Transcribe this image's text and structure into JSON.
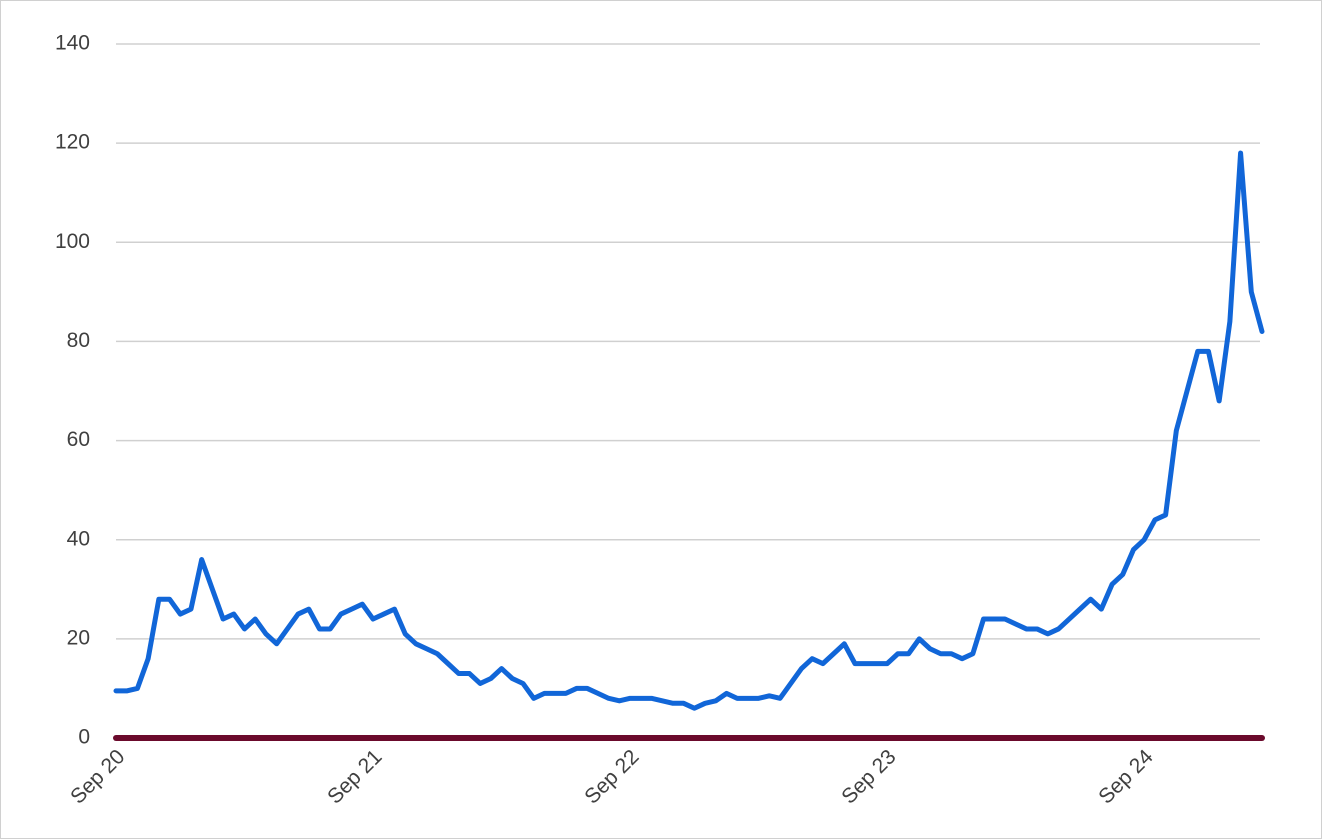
{
  "chart_data": {
    "type": "line",
    "categories": [
      "Sep 20",
      null,
      null,
      null,
      null,
      null,
      null,
      null,
      null,
      null,
      null,
      null,
      null,
      null,
      null,
      null,
      null,
      null,
      null,
      null,
      null,
      null,
      null,
      null,
      "Sep 21",
      null,
      null,
      null,
      null,
      null,
      null,
      null,
      null,
      null,
      null,
      null,
      null,
      null,
      null,
      null,
      null,
      null,
      null,
      null,
      null,
      null,
      null,
      null,
      "Sep 22",
      null,
      null,
      null,
      null,
      null,
      null,
      null,
      null,
      null,
      null,
      null,
      null,
      null,
      null,
      null,
      null,
      null,
      null,
      null,
      null,
      null,
      null,
      null,
      "Sep 23",
      null,
      null,
      null,
      null,
      null,
      null,
      null,
      null,
      null,
      null,
      null,
      null,
      null,
      null,
      null,
      null,
      null,
      null,
      null,
      null,
      null,
      null,
      null,
      "Sep 24",
      null,
      null,
      null,
      null,
      null,
      null,
      null,
      null,
      null,
      null,
      null
    ],
    "series": [
      {
        "color": "#1166d8",
        "values": [
          9.5,
          9.5,
          10,
          16,
          28,
          28,
          25,
          26,
          36,
          30,
          24,
          25,
          22,
          24,
          21,
          19,
          22,
          25,
          26,
          22,
          22,
          25,
          26,
          27,
          24,
          25,
          26,
          21,
          19,
          18,
          17,
          15,
          13,
          13,
          11,
          12,
          14,
          12,
          11,
          8,
          9,
          9,
          9,
          10,
          10,
          9,
          8,
          7.5,
          8,
          8,
          8,
          7.5,
          7,
          7,
          6,
          7,
          7.5,
          9,
          8,
          8,
          8,
          8.5,
          8,
          11,
          14,
          16,
          15,
          17,
          19,
          15,
          15,
          15,
          15,
          17,
          17,
          20,
          18,
          17,
          17,
          16,
          17,
          24,
          24,
          24,
          23,
          22,
          22,
          21,
          22,
          24,
          26,
          28,
          26,
          31,
          33,
          38,
          40,
          44,
          45,
          62,
          70,
          78,
          78,
          68,
          84,
          118,
          90,
          82
        ]
      },
      {
        "color": "#6b0a2c",
        "values": [
          0,
          0,
          0,
          0,
          0,
          0,
          0,
          0,
          0,
          0,
          0,
          0,
          0,
          0,
          0,
          0,
          0,
          0,
          0,
          0,
          0,
          0,
          0,
          0,
          0,
          0,
          0,
          0,
          0,
          0,
          0,
          0,
          0,
          0,
          0,
          0,
          0,
          0,
          0,
          0,
          0,
          0,
          0,
          0,
          0,
          0,
          0,
          0,
          0,
          0,
          0,
          0,
          0,
          0,
          0,
          0,
          0,
          0,
          0,
          0,
          0,
          0,
          0,
          0,
          0,
          0,
          0,
          0,
          0,
          0,
          0,
          0,
          0,
          0,
          0,
          0,
          0,
          0,
          0,
          0,
          0,
          0,
          0,
          0,
          0,
          0,
          0,
          0,
          0,
          0,
          0,
          0,
          0,
          0,
          0,
          0,
          0,
          0,
          0,
          0,
          0,
          0,
          0,
          0,
          0,
          0,
          0,
          0
        ]
      }
    ],
    "ylim": [
      0,
      140
    ],
    "yticks": [
      0,
      20,
      40,
      60,
      80,
      100,
      120,
      140
    ],
    "grid": true
  }
}
